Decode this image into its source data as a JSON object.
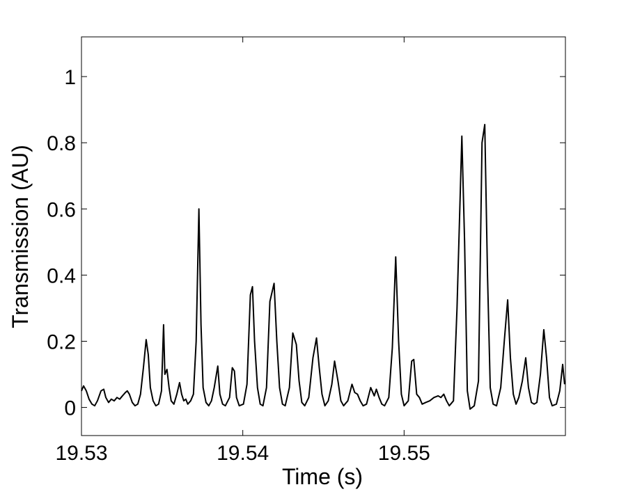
{
  "chart_data": {
    "type": "line",
    "x_label": "Time (s)",
    "y_label": "Transmission (AU)",
    "xlim": [
      19.53,
      19.56
    ],
    "ylim": [
      -0.085,
      1.12
    ],
    "xticks": [
      19.53,
      19.54,
      19.55
    ],
    "yticks": [
      0,
      0.2,
      0.4,
      0.6,
      0.8,
      1
    ],
    "series": [
      {
        "color": "#000000",
        "x": [
          19.53,
          19.53013,
          19.5303,
          19.53047,
          19.53065,
          19.53082,
          19.53099,
          19.53121,
          19.53138,
          19.53151,
          19.53168,
          19.53185,
          19.53203,
          19.5322,
          19.53237,
          19.53254,
          19.53272,
          19.53284,
          19.53297,
          19.53315,
          19.53332,
          19.53349,
          19.53366,
          19.53384,
          19.53401,
          19.53414,
          19.53427,
          19.53444,
          19.53461,
          19.53478,
          19.53496,
          19.53509,
          19.53517,
          19.5353,
          19.53543,
          19.53556,
          19.53573,
          19.53591,
          19.53608,
          19.53621,
          19.53634,
          19.53647,
          19.53659,
          19.53677,
          19.53694,
          19.53711,
          19.53728,
          19.53741,
          19.53754,
          19.53772,
          19.53789,
          19.53806,
          19.53823,
          19.53845,
          19.53858,
          19.53875,
          19.53892,
          19.53918,
          19.53935,
          19.53948,
          19.53961,
          19.53978,
          19.54004,
          19.54026,
          19.54047,
          19.5406,
          19.54073,
          19.54091,
          19.54108,
          19.54125,
          19.54147,
          19.54168,
          19.54194,
          19.54211,
          19.54228,
          19.54246,
          19.54263,
          19.54289,
          19.5431,
          19.54332,
          19.54349,
          19.54366,
          19.54384,
          19.54409,
          19.54435,
          19.54457,
          19.54474,
          19.54491,
          19.54509,
          19.5453,
          19.54552,
          19.54569,
          19.5459,
          19.54608,
          19.54625,
          19.54651,
          19.54677,
          19.54694,
          19.54711,
          19.54728,
          19.54746,
          19.54767,
          19.54793,
          19.54815,
          19.54828,
          19.54845,
          19.54862,
          19.54879,
          19.54905,
          19.54927,
          19.54948,
          19.54966,
          19.54983,
          19.55,
          19.55026,
          19.55047,
          19.5506,
          19.55078,
          19.55095,
          19.55112,
          19.55134,
          19.55159,
          19.55185,
          19.55211,
          19.55228,
          19.55246,
          19.55263,
          19.5528,
          19.55306,
          19.55328,
          19.55358,
          19.55375,
          19.55392,
          19.55409,
          19.55435,
          19.55461,
          19.55483,
          19.555,
          19.55517,
          19.55534,
          19.55552,
          19.55573,
          19.55599,
          19.55621,
          19.55642,
          19.55659,
          19.55677,
          19.55694,
          19.55711,
          19.55733,
          19.55754,
          19.55771,
          19.55789,
          19.55806,
          19.55823,
          19.55845,
          19.55866,
          19.55883,
          19.55901,
          19.55918,
          19.55944,
          19.55965,
          19.55983,
          19.55995
        ],
        "values": [
          0.05,
          0.065,
          0.05,
          0.025,
          0.01,
          0.005,
          0.02,
          0.05,
          0.055,
          0.03,
          0.015,
          0.025,
          0.02,
          0.03,
          0.025,
          0.035,
          0.045,
          0.05,
          0.04,
          0.015,
          0.005,
          0.01,
          0.04,
          0.12,
          0.205,
          0.16,
          0.06,
          0.02,
          0.005,
          0.01,
          0.05,
          0.25,
          0.1,
          0.115,
          0.06,
          0.02,
          0.01,
          0.04,
          0.075,
          0.04,
          0.02,
          0.025,
          0.01,
          0.02,
          0.04,
          0.2,
          0.6,
          0.25,
          0.06,
          0.015,
          0.005,
          0.02,
          0.06,
          0.125,
          0.04,
          0.01,
          0.005,
          0.03,
          0.12,
          0.11,
          0.03,
          0.005,
          0.01,
          0.07,
          0.34,
          0.365,
          0.2,
          0.06,
          0.01,
          0.005,
          0.06,
          0.32,
          0.375,
          0.2,
          0.06,
          0.01,
          0.005,
          0.06,
          0.225,
          0.19,
          0.08,
          0.015,
          0.005,
          0.03,
          0.15,
          0.21,
          0.12,
          0.04,
          0.005,
          0.02,
          0.07,
          0.14,
          0.08,
          0.02,
          0.005,
          0.02,
          0.07,
          0.045,
          0.04,
          0.02,
          0.005,
          0.01,
          0.06,
          0.035,
          0.055,
          0.03,
          0.01,
          0.005,
          0.03,
          0.18,
          0.455,
          0.2,
          0.04,
          0.005,
          0.02,
          0.14,
          0.145,
          0.04,
          0.03,
          0.01,
          0.015,
          0.02,
          0.03,
          0.035,
          0.03,
          0.04,
          0.02,
          0.005,
          0.02,
          0.3,
          0.82,
          0.5,
          0.05,
          -0.005,
          0.005,
          0.08,
          0.8,
          0.855,
          0.4,
          0.06,
          0.01,
          0.005,
          0.06,
          0.2,
          0.325,
          0.15,
          0.04,
          0.01,
          0.03,
          0.08,
          0.15,
          0.06,
          0.015,
          0.01,
          0.015,
          0.1,
          0.235,
          0.15,
          0.03,
          0.005,
          0.01,
          0.05,
          0.13,
          0.07
        ]
      }
    ]
  }
}
